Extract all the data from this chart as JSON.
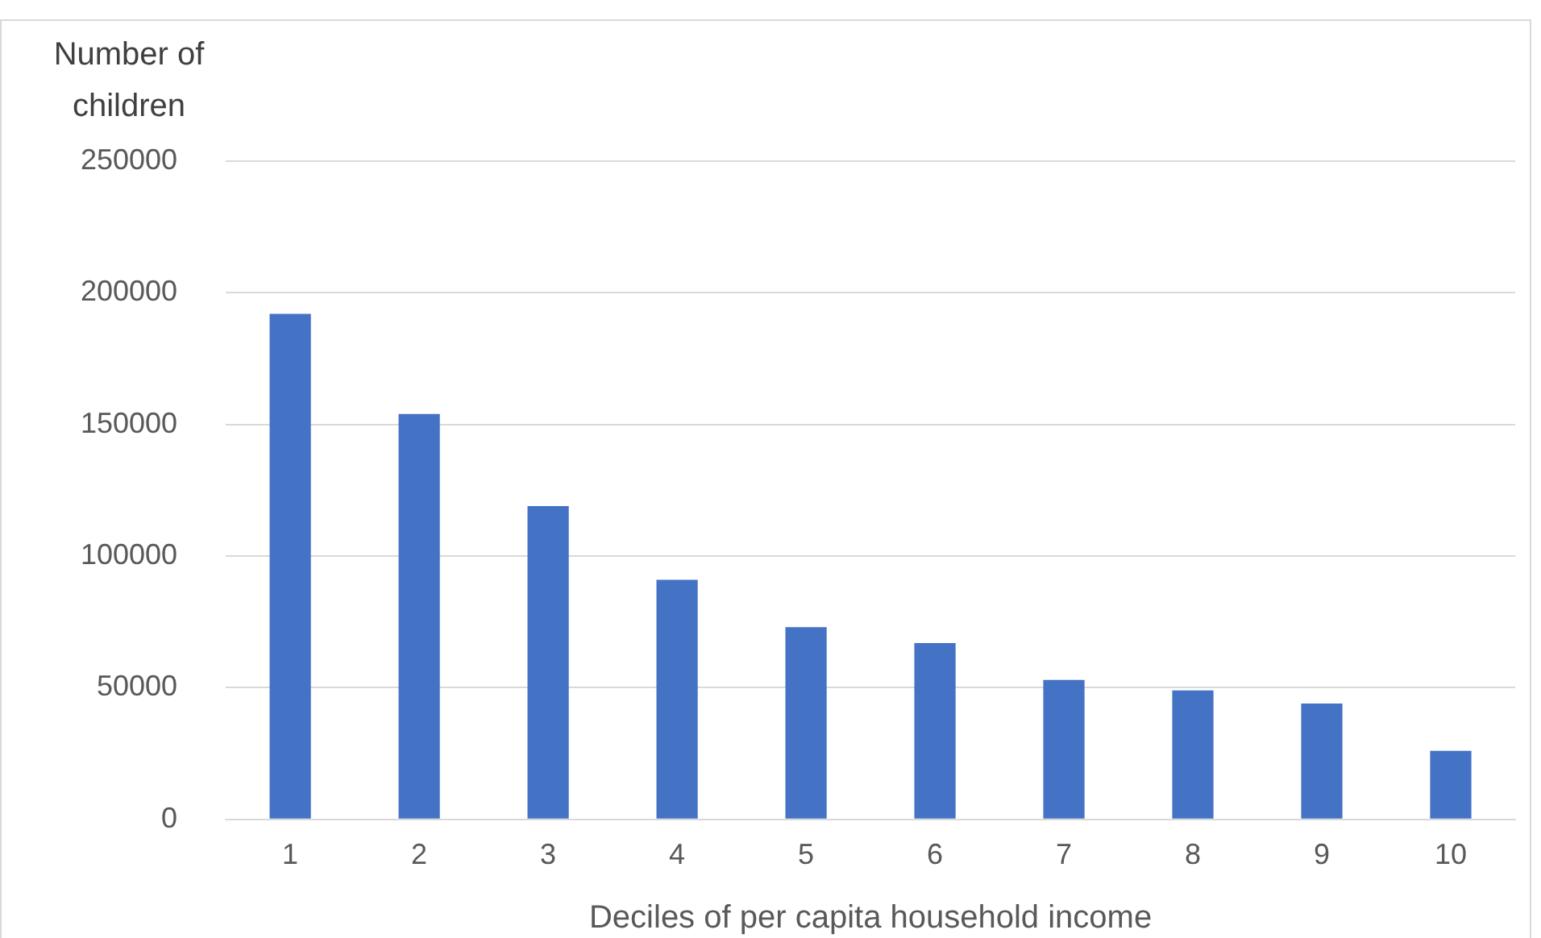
{
  "chart_data": {
    "type": "bar",
    "xlabel": "Deciles of per capita household income",
    "ylabel": "Number of children",
    "categories": [
      "1",
      "2",
      "3",
      "4",
      "5",
      "6",
      "7",
      "8",
      "9",
      "10"
    ],
    "values": [
      192000,
      154000,
      119000,
      91000,
      73000,
      67000,
      53000,
      49000,
      44000,
      26000
    ],
    "color": "#4472c4",
    "ylim": [
      0,
      250000
    ],
    "yticks": [
      0,
      50000,
      100000,
      150000,
      200000,
      250000
    ],
    "grid": "y",
    "legend": false
  }
}
